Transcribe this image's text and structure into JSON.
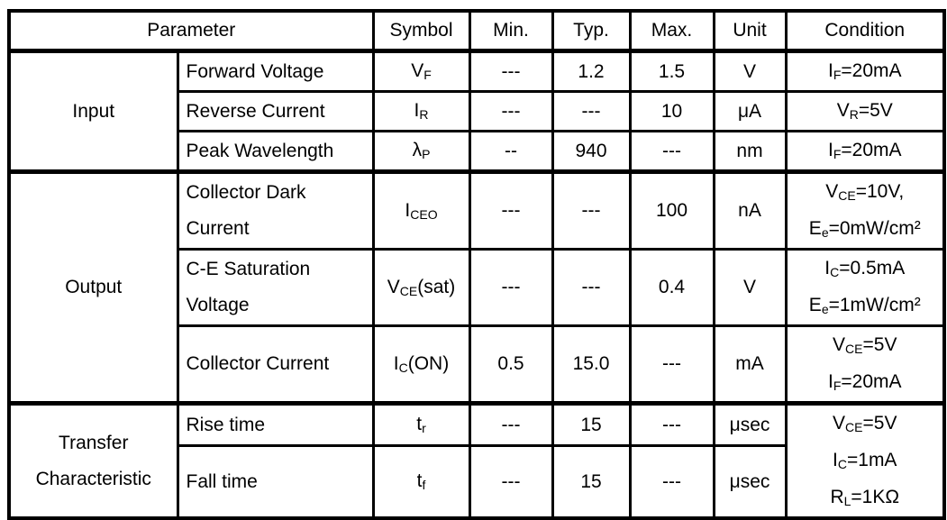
{
  "header": [
    "Parameter",
    "Symbol",
    "Min.",
    "Typ.",
    "Max.",
    "Unit",
    "Condition"
  ],
  "groups": [
    {
      "name": "Input",
      "rows": [
        {
          "param": [
            "Forward Voltage"
          ],
          "symbol": {
            "base": "V",
            "sub": "F",
            "tail": ""
          },
          "min": "---",
          "typ": "1.2",
          "max": "1.5",
          "unit": "V",
          "condition": [
            {
              "base": "I",
              "sub": "F",
              "tail": "=20mA"
            }
          ]
        },
        {
          "param": [
            "Reverse Current"
          ],
          "symbol": {
            "base": "I",
            "sub": "R",
            "tail": ""
          },
          "min": "---",
          "typ": "---",
          "max": "10",
          "unit": "μA",
          "condition": [
            {
              "base": "V",
              "sub": "R",
              "tail": "=5V"
            }
          ]
        },
        {
          "param": [
            "Peak Wavelength"
          ],
          "symbol": {
            "base": "λ",
            "sub": "P",
            "tail": ""
          },
          "min": "--",
          "typ": "940",
          "max": "---",
          "unit": "nm",
          "condition": [
            {
              "base": "I",
              "sub": "F",
              "tail": "=20mA"
            }
          ]
        }
      ]
    },
    {
      "name": "Output",
      "rows": [
        {
          "param": [
            "Collector Dark",
            "Current"
          ],
          "symbol": {
            "base": "I",
            "sub": "CEO",
            "tail": ""
          },
          "min": "---",
          "typ": "---",
          "max": "100",
          "unit": "nA",
          "condition": [
            {
              "base": "V",
              "sub": "CE",
              "tail": "=10V,"
            },
            {
              "base": "E",
              "sub": "e",
              "tail": "=0mW/cm²"
            }
          ]
        },
        {
          "param": [
            "C-E Saturation",
            "Voltage"
          ],
          "symbol": {
            "base": "V",
            "sub": "CE",
            "tail": "(sat)"
          },
          "min": "---",
          "typ": "---",
          "max": "0.4",
          "unit": "V",
          "condition": [
            {
              "base": "I",
              "sub": "C",
              "tail": "=0.5mA"
            },
            {
              "base": "E",
              "sub": "e",
              "tail": "=1mW/cm²"
            }
          ]
        },
        {
          "param": [
            "Collector Current"
          ],
          "symbol": {
            "base": "I",
            "sub": "C",
            "tail": "(ON)"
          },
          "min": "0.5",
          "typ": "15.0",
          "max": "---",
          "unit": "mA",
          "condition": [
            {
              "base": "V",
              "sub": "CE",
              "tail": "=5V"
            },
            {
              "base": "I",
              "sub": "F",
              "tail": "=20mA"
            }
          ]
        }
      ]
    },
    {
      "name": "Transfer Characteristic",
      "rows": [
        {
          "param": [
            "Rise time"
          ],
          "symbol": {
            "base": "t",
            "sub": "r",
            "tail": ""
          },
          "min": "---",
          "typ": "15",
          "max": "---",
          "unit": "μsec",
          "condition": [
            {
              "base": "V",
              "sub": "CE",
              "tail": "=5V"
            },
            {
              "base": "I",
              "sub": "C",
              "tail": "=1mA"
            },
            {
              "base": "R",
              "sub": "L",
              "tail": "=1KΩ"
            }
          ]
        },
        {
          "param": [
            "Fall time"
          ],
          "symbol": {
            "base": "t",
            "sub": "f",
            "tail": ""
          },
          "min": "---",
          "typ": "15",
          "max": "---",
          "unit": "μsec",
          "condition": null
        }
      ]
    }
  ]
}
